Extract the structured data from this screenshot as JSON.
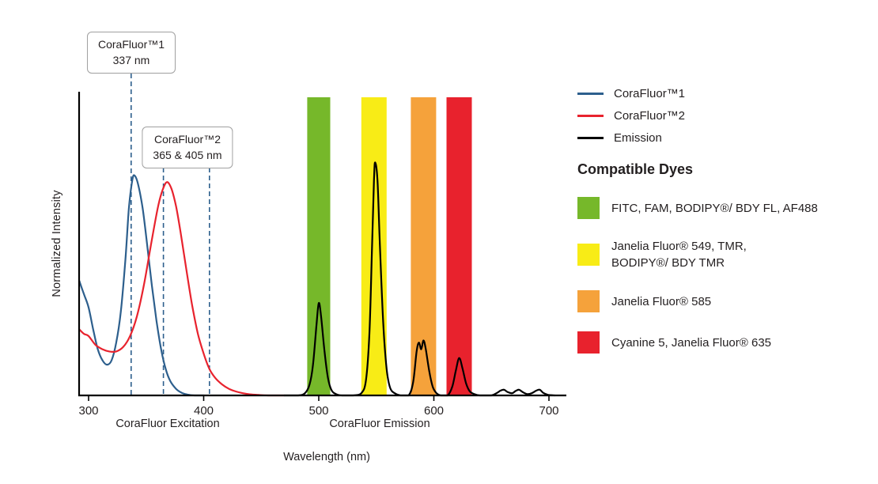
{
  "chart_data": {
    "type": "line",
    "title": "",
    "xlabel": "Wavelength (nm)",
    "ylabel": "Normalized Intensity",
    "x_ticks": [
      300,
      400,
      500,
      600,
      700
    ],
    "xlim": [
      292,
      715
    ],
    "ylim": [
      0,
      1.1
    ],
    "grid": false,
    "x_section_labels": [
      "CoraFluor Excitation",
      "CoraFluor Emission"
    ],
    "excitation_markers_nm": [
      337,
      365,
      405
    ],
    "filter_bands": [
      {
        "name": "green",
        "from_nm": 490,
        "to_nm": 510,
        "color": "#76b82a"
      },
      {
        "name": "yellow",
        "from_nm": 537,
        "to_nm": 559,
        "color": "#f8ec16"
      },
      {
        "name": "orange",
        "from_nm": 580,
        "to_nm": 602,
        "color": "#f5a23b"
      },
      {
        "name": "red",
        "from_nm": 611,
        "to_nm": 633,
        "color": "#e8222d"
      }
    ],
    "series": [
      {
        "name": "CoraFluor™1",
        "color": "#2d5f8d",
        "points": [
          [
            292,
            0.52
          ],
          [
            296,
            0.46
          ],
          [
            300,
            0.4
          ],
          [
            304,
            0.3
          ],
          [
            308,
            0.21
          ],
          [
            312,
            0.16
          ],
          [
            316,
            0.14
          ],
          [
            320,
            0.16
          ],
          [
            324,
            0.24
          ],
          [
            328,
            0.38
          ],
          [
            332,
            0.62
          ],
          [
            335,
            0.85
          ],
          [
            338,
            0.98
          ],
          [
            340,
            1.0
          ],
          [
            343,
            0.96
          ],
          [
            347,
            0.85
          ],
          [
            351,
            0.68
          ],
          [
            355,
            0.5
          ],
          [
            359,
            0.34
          ],
          [
            363,
            0.21
          ],
          [
            367,
            0.12
          ],
          [
            371,
            0.065
          ],
          [
            376,
            0.03
          ],
          [
            381,
            0.012
          ],
          [
            386,
            0.004
          ],
          [
            392,
            0.0
          ],
          [
            400,
            0.0
          ]
        ]
      },
      {
        "name": "CoraFluor™2",
        "color": "#e8232e",
        "points": [
          [
            292,
            0.3
          ],
          [
            296,
            0.28
          ],
          [
            300,
            0.27
          ],
          [
            306,
            0.23
          ],
          [
            312,
            0.21
          ],
          [
            318,
            0.2
          ],
          [
            324,
            0.2
          ],
          [
            330,
            0.22
          ],
          [
            336,
            0.27
          ],
          [
            342,
            0.36
          ],
          [
            348,
            0.5
          ],
          [
            354,
            0.68
          ],
          [
            360,
            0.85
          ],
          [
            364,
            0.93
          ],
          [
            368,
            0.97
          ],
          [
            372,
            0.94
          ],
          [
            376,
            0.86
          ],
          [
            380,
            0.74
          ],
          [
            385,
            0.57
          ],
          [
            390,
            0.41
          ],
          [
            395,
            0.28
          ],
          [
            400,
            0.19
          ],
          [
            405,
            0.12
          ],
          [
            410,
            0.08
          ],
          [
            416,
            0.05
          ],
          [
            422,
            0.03
          ],
          [
            428,
            0.018
          ],
          [
            434,
            0.01
          ],
          [
            440,
            0.005
          ],
          [
            448,
            0.002
          ],
          [
            456,
            0.0
          ],
          [
            470,
            0.0
          ]
        ]
      },
      {
        "name": "Emission",
        "color": "#000000",
        "points": [
          [
            470,
            0.0
          ],
          [
            482,
            0.0
          ],
          [
            488,
            0.01
          ],
          [
            492,
            0.05
          ],
          [
            495,
            0.14
          ],
          [
            498,
            0.32
          ],
          [
            500,
            0.42
          ],
          [
            502,
            0.36
          ],
          [
            505,
            0.2
          ],
          [
            508,
            0.08
          ],
          [
            511,
            0.025
          ],
          [
            515,
            0.006
          ],
          [
            520,
            0.0
          ],
          [
            530,
            0.0
          ],
          [
            537,
            0.01
          ],
          [
            541,
            0.07
          ],
          [
            544,
            0.28
          ],
          [
            546,
            0.62
          ],
          [
            548,
            0.98
          ],
          [
            549,
            1.06
          ],
          [
            551,
            0.98
          ],
          [
            553,
            0.7
          ],
          [
            556,
            0.33
          ],
          [
            559,
            0.12
          ],
          [
            562,
            0.035
          ],
          [
            566,
            0.01
          ],
          [
            571,
            0.0
          ],
          [
            578,
            0.0
          ],
          [
            582,
            0.06
          ],
          [
            585,
            0.2
          ],
          [
            587,
            0.24
          ],
          [
            589,
            0.21
          ],
          [
            591,
            0.25
          ],
          [
            593,
            0.21
          ],
          [
            596,
            0.11
          ],
          [
            599,
            0.04
          ],
          [
            602,
            0.012
          ],
          [
            606,
            0.0
          ],
          [
            612,
            0.0
          ],
          [
            616,
            0.04
          ],
          [
            619,
            0.11
          ],
          [
            622,
            0.17
          ],
          [
            625,
            0.12
          ],
          [
            628,
            0.055
          ],
          [
            631,
            0.02
          ],
          [
            635,
            0.006
          ],
          [
            640,
            0.0
          ],
          [
            650,
            0.0
          ],
          [
            655,
            0.012
          ],
          [
            658,
            0.022
          ],
          [
            661,
            0.026
          ],
          [
            664,
            0.016
          ],
          [
            668,
            0.01
          ],
          [
            671,
            0.02
          ],
          [
            674,
            0.026
          ],
          [
            677,
            0.016
          ],
          [
            681,
            0.006
          ],
          [
            685,
            0.01
          ],
          [
            689,
            0.022
          ],
          [
            692,
            0.026
          ],
          [
            695,
            0.012
          ],
          [
            699,
            0.003
          ],
          [
            705,
            0.0
          ]
        ]
      }
    ]
  },
  "callouts": [
    {
      "title": "CoraFluor™1",
      "subtitle": "337 nm"
    },
    {
      "title": "CoraFluor™2",
      "subtitle": "365 & 405 nm"
    }
  ],
  "legend": {
    "lines": [
      {
        "label": "CoraFluor™1",
        "color": "#2d5f8d"
      },
      {
        "label": "CoraFluor™2",
        "color": "#e8232e"
      },
      {
        "label": "Emission",
        "color": "#000000"
      }
    ],
    "dyes_heading": "Compatible Dyes",
    "dyes": [
      {
        "label": "FITC, FAM, BODIPY®/ BDY FL, AF488",
        "color": "#76b82a"
      },
      {
        "label": "Janelia Fluor® 549, TMR,\nBODIPY®/ BDY TMR",
        "color": "#f8ec16"
      },
      {
        "label": "Janelia Fluor® 585",
        "color": "#f5a23b"
      },
      {
        "label": "Cyanine 5, Janelia Fluor® 635",
        "color": "#e8222d"
      }
    ]
  }
}
